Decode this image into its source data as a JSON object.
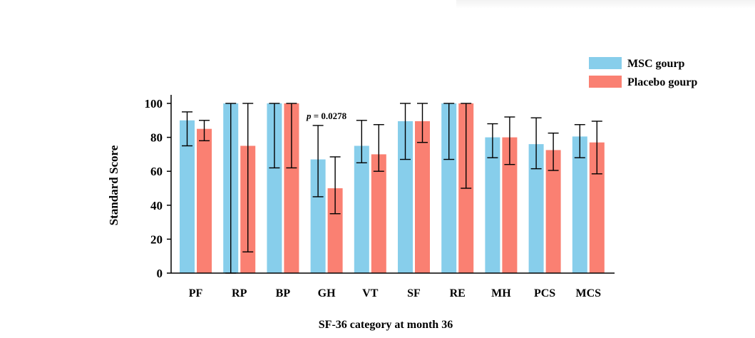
{
  "chart_data": {
    "type": "bar",
    "title": "",
    "xlabel": "SF-36 category at month 36",
    "ylabel": "Standard Score",
    "ylim": [
      0,
      100
    ],
    "yticks": [
      0,
      20,
      40,
      60,
      80,
      100
    ],
    "categories": [
      "PF",
      "RP",
      "BP",
      "GH",
      "VT",
      "SF",
      "RE",
      "MH",
      "PCS",
      "MCS"
    ],
    "series": [
      {
        "name": "MSC gourp",
        "color": "#87CEEB",
        "values": [
          90,
          100,
          100,
          67,
          75,
          89.5,
          100,
          80,
          76,
          80.5
        ],
        "error_low": [
          75,
          0,
          62,
          45,
          65,
          67,
          67,
          68,
          61.5,
          68
        ],
        "error_high": [
          95,
          100,
          100,
          87,
          90,
          100,
          100,
          88,
          91.5,
          87.5
        ]
      },
      {
        "name": "Placebo gourp",
        "color": "#FA8072",
        "values": [
          85,
          75,
          100,
          50,
          70,
          89.5,
          100,
          80,
          72.5,
          77
        ],
        "error_low": [
          78,
          12.5,
          62,
          35,
          60,
          77,
          50,
          64,
          60.5,
          58.5
        ],
        "error_high": [
          90,
          100,
          100,
          68.5,
          87.5,
          100,
          100,
          92,
          82.5,
          89.5
        ]
      }
    ],
    "annotations": [
      {
        "category": "GH",
        "text": "p = 0.0278",
        "italic_prefix": "p",
        "rest": " = 0.0278"
      }
    ],
    "grid": false,
    "legend_position": "top-right"
  }
}
